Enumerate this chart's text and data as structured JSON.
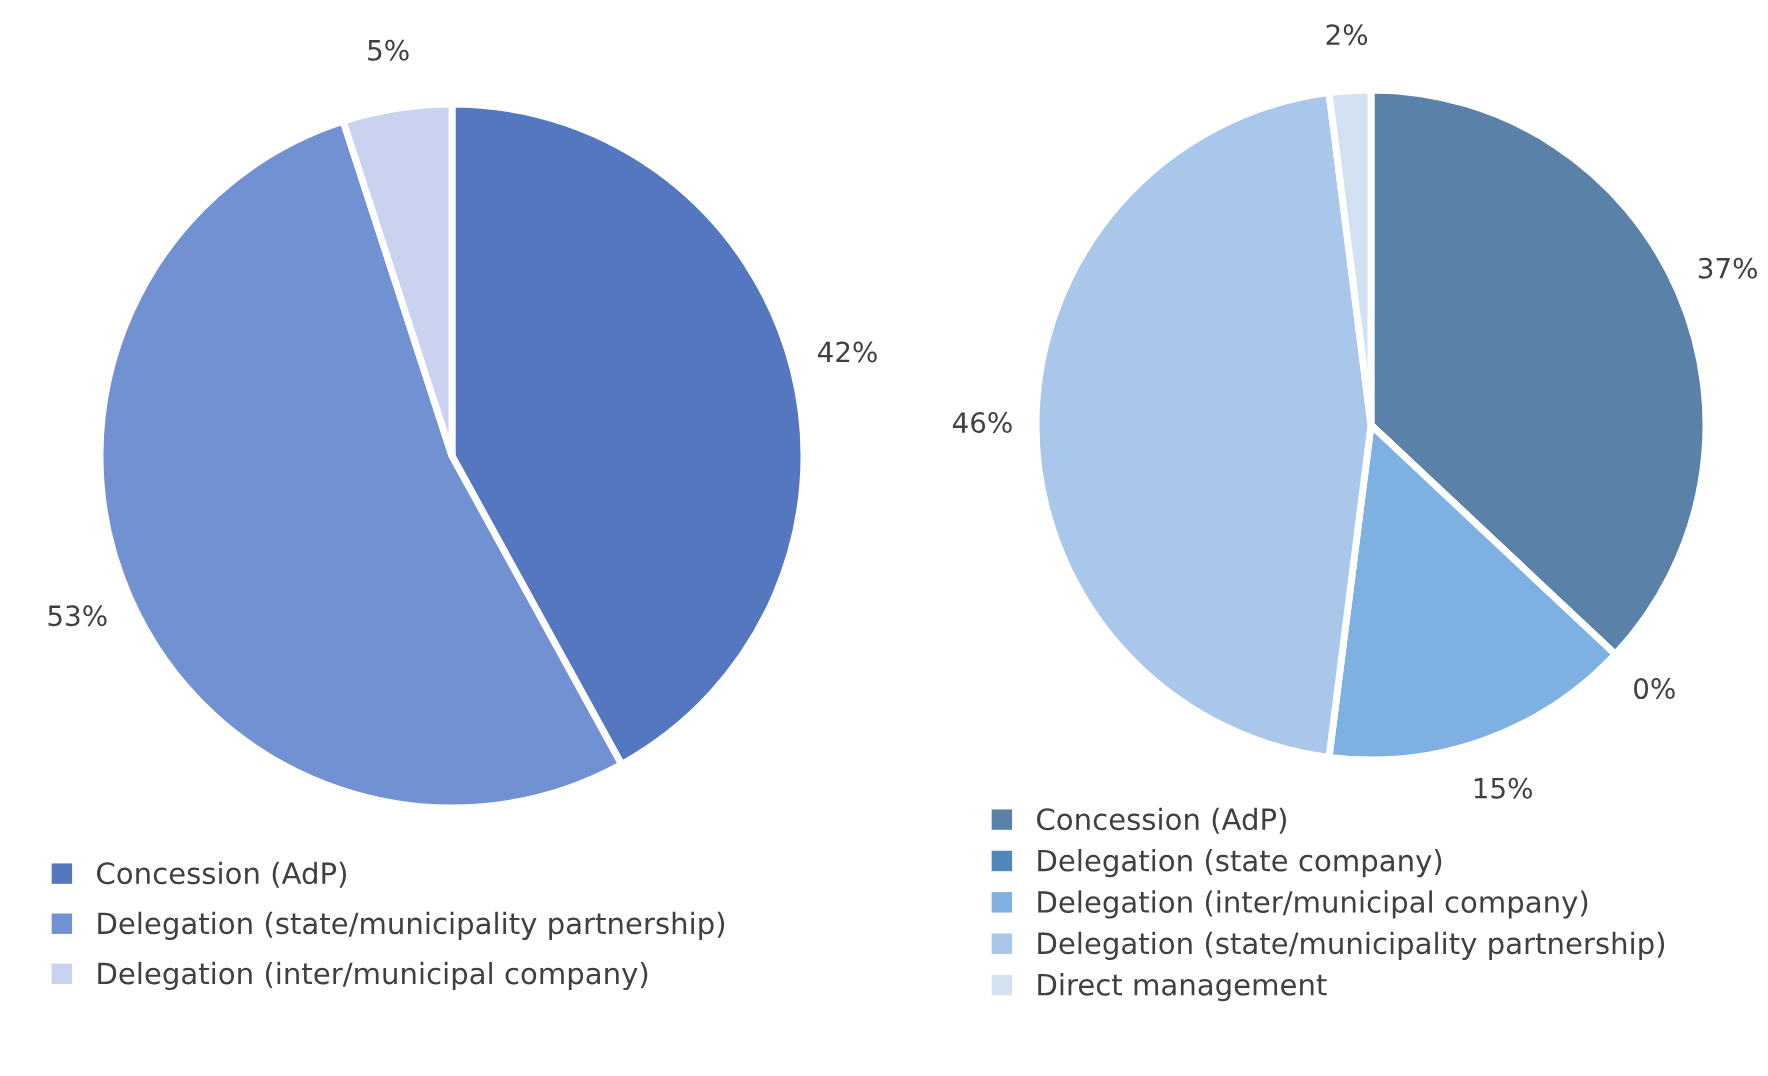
{
  "chart_data": [
    {
      "type": "pie",
      "categories": [
        "Concession (AdP)",
        "Delegation (state/municipality partnership)",
        "Delegation (inter/municipal company)"
      ],
      "values": [
        42,
        53,
        5
      ],
      "value_labels": [
        "42%",
        "53%",
        "5%"
      ],
      "colors": [
        "#5577bf",
        "#7291d3",
        "#c9d2ee"
      ],
      "legend": "bottom"
    },
    {
      "type": "pie",
      "categories": [
        "Concession (AdP)",
        "Delegation (state company)",
        "Delegation (inter/municipal company)",
        "Delegation (state/municipality partnership)",
        "Direct management"
      ],
      "values": [
        37,
        0,
        15,
        46,
        2
      ],
      "value_labels": [
        "37%",
        "0%",
        "15%",
        "46%",
        "2%"
      ],
      "colors": [
        "#5a82a8",
        "#4f86bd",
        "#7fb0e2",
        "#a9c7ea",
        "#d3e2f3"
      ],
      "legend": "bottom"
    }
  ]
}
